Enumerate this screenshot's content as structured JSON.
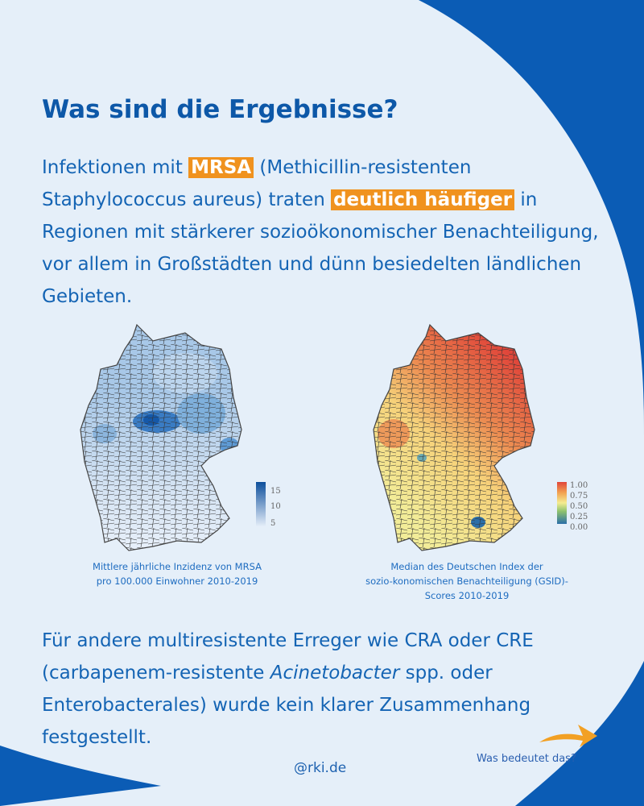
{
  "title": "Was sind die Ergebnisse?",
  "intro": {
    "part1": "Infektionen mit ",
    "hl1": "MRSA",
    "part2": " (Methicillin-resistenten Staphylococcus aureus) traten ",
    "hl2": "deutlich häufiger",
    "part3": " in Regionen mit stärkerer sozioökonomischer Benachteiligung, vor allem in Großstädten und dünn besiedelten ländlichen Gebieten."
  },
  "map_mrsa": {
    "caption_line1": "Mittlere jährliche Inzidenz von MRSA",
    "caption_line2": "pro 100.000 Einwohner 2010-2019",
    "legend_ticks": [
      "15",
      "10",
      "5"
    ],
    "colors": {
      "low": "#e8f0fa",
      "high": "#0d4f9c"
    }
  },
  "map_gsid": {
    "caption_line1": "Median des Deutschen Index der",
    "caption_line2": "sozio-konomischen Benachteiligung (GSID)-",
    "caption_line3": "Scores 2010-2019",
    "legend_ticks": [
      "1.00",
      "0.75",
      "0.50",
      "0.25",
      "0.00"
    ],
    "colors": {
      "low": "#2b6fa8",
      "mid": "#f4ec90",
      "high": "#e0463a"
    }
  },
  "outro": {
    "part1": "Für andere multiresistente Erreger wie CRA oder CRE (carbapenem-resistente ",
    "italic": "Acinetobacter",
    "part2": " spp. oder Enterobacterales) wurde kein klarer Zusammenhang festgestellt."
  },
  "footer": {
    "handle": "@rki.de",
    "next_label": "Was bedeutet das?",
    "arrow_icon": "arrow-right-icon"
  },
  "colors": {
    "brand_blue": "#0b5cb5",
    "background": "#e5eff9",
    "highlight": "#f0921e"
  }
}
